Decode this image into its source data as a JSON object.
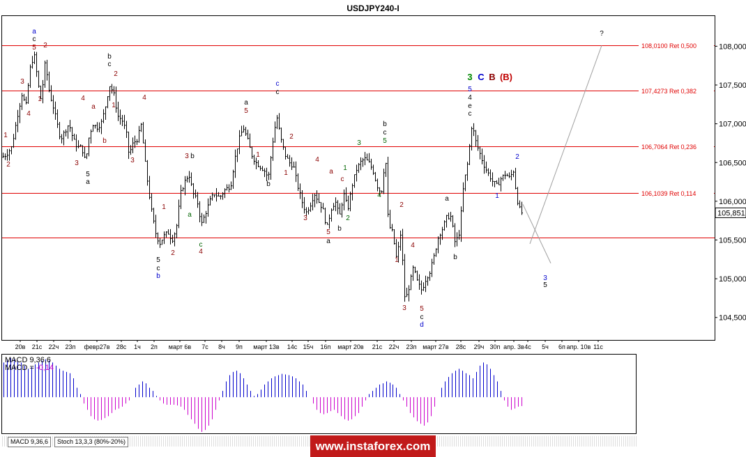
{
  "chart_data": [
    {
      "type": "candlestick",
      "title": "USDJPY240-I",
      "symbol": "USDJPY240-I",
      "ylim": [
        104.21,
        108.39
      ],
      "yticks": [
        "104,500",
        "105,000",
        "105,500",
        "106,000",
        "106,500",
        "107,000",
        "107,500",
        "108,000"
      ],
      "current_price": "105,851",
      "xticks": [
        "20в",
        "21с",
        "22ч",
        "23п",
        "февр27в",
        "28с",
        "1ч",
        "2п",
        "март 6в",
        "7с",
        "8ч",
        "9п",
        "март 13в",
        "14с",
        "15ч",
        "16п",
        "март 20в",
        "21с",
        "22ч",
        "23п",
        "март 27в",
        "28с",
        "29ч",
        "30п",
        "апр. 3в",
        "4с",
        "5ч",
        "6п",
        "апр. 10в",
        "11с"
      ],
      "levels": [
        {
          "price": 108.01,
          "label": "108,0100 Ret 0,500"
        },
        {
          "price": 107.4273,
          "label": "107,4273 Ret 0,382"
        },
        {
          "price": 106.7064,
          "label": "106,7064 Ret 0,236"
        },
        {
          "price": 106.1039,
          "label": "106,1039 Ret 0,114"
        },
        {
          "price": 105.53,
          "label": ""
        }
      ],
      "path": [
        [
          0,
          106.55
        ],
        [
          10,
          106.6
        ],
        [
          18,
          106.7
        ],
        [
          26,
          107.1
        ],
        [
          33,
          107.4
        ],
        [
          38,
          107.2
        ],
        [
          44,
          107.7
        ],
        [
          50,
          107.9
        ],
        [
          56,
          107.5
        ],
        [
          60,
          107.3
        ],
        [
          66,
          107.8
        ],
        [
          72,
          107.4
        ],
        [
          78,
          107.2
        ],
        [
          83,
          107.0
        ],
        [
          88,
          106.8
        ],
        [
          94,
          106.9
        ],
        [
          100,
          107.0
        ],
        [
          106,
          106.8
        ],
        [
          112,
          106.7
        ],
        [
          118,
          106.7
        ],
        [
          124,
          106.5
        ],
        [
          128,
          106.8
        ],
        [
          134,
          107.0
        ],
        [
          140,
          106.95
        ],
        [
          146,
          107.0
        ],
        [
          152,
          107.2
        ],
        [
          158,
          107.5
        ],
        [
          164,
          107.4
        ],
        [
          170,
          107.1
        ],
        [
          176,
          107.05
        ],
        [
          182,
          106.9
        ],
        [
          186,
          106.6
        ],
        [
          192,
          106.75
        ],
        [
          198,
          106.8
        ],
        [
          204,
          107.0
        ],
        [
          208,
          106.6
        ],
        [
          212,
          106.3
        ],
        [
          218,
          105.9
        ],
        [
          224,
          105.6
        ],
        [
          230,
          105.45
        ],
        [
          236,
          105.55
        ],
        [
          242,
          105.6
        ],
        [
          248,
          105.5
        ],
        [
          254,
          105.65
        ],
        [
          260,
          106.1
        ],
        [
          266,
          106.25
        ],
        [
          272,
          106.35
        ],
        [
          278,
          106.1
        ],
        [
          284,
          106.0
        ],
        [
          290,
          105.7
        ],
        [
          296,
          105.85
        ],
        [
          302,
          106.0
        ],
        [
          308,
          106.1
        ],
        [
          316,
          106.05
        ],
        [
          324,
          106.15
        ],
        [
          332,
          106.2
        ],
        [
          338,
          106.55
        ],
        [
          344,
          106.8
        ],
        [
          350,
          106.95
        ],
        [
          356,
          106.8
        ],
        [
          362,
          106.6
        ],
        [
          368,
          106.5
        ],
        [
          374,
          106.45
        ],
        [
          380,
          106.4
        ],
        [
          386,
          106.3
        ],
        [
          392,
          106.75
        ],
        [
          398,
          107.1
        ],
        [
          404,
          106.8
        ],
        [
          410,
          106.6
        ],
        [
          416,
          106.5
        ],
        [
          422,
          106.45
        ],
        [
          428,
          106.2
        ],
        [
          434,
          106.0
        ],
        [
          440,
          105.85
        ],
        [
          446,
          105.95
        ],
        [
          452,
          106.1
        ],
        [
          458,
          106.0
        ],
        [
          464,
          105.9
        ],
        [
          470,
          105.65
        ],
        [
          476,
          105.9
        ],
        [
          482,
          106.0
        ],
        [
          488,
          105.8
        ],
        [
          494,
          106.1
        ],
        [
          500,
          105.9
        ],
        [
          506,
          106.2
        ],
        [
          512,
          106.4
        ],
        [
          518,
          106.5
        ],
        [
          524,
          106.55
        ],
        [
          530,
          106.5
        ],
        [
          536,
          106.4
        ],
        [
          542,
          106.2
        ],
        [
          548,
          106.1
        ],
        [
          554,
          106.6
        ],
        [
          558,
          105.7
        ],
        [
          564,
          105.6
        ],
        [
          570,
          105.25
        ],
        [
          576,
          105.6
        ],
        [
          582,
          104.7
        ],
        [
          588,
          104.9
        ],
        [
          594,
          105.15
        ],
        [
          600,
          104.95
        ],
        [
          606,
          104.85
        ],
        [
          612,
          105.0
        ],
        [
          618,
          105.1
        ],
        [
          624,
          105.3
        ],
        [
          630,
          105.55
        ],
        [
          636,
          105.65
        ],
        [
          642,
          105.8
        ],
        [
          648,
          105.8
        ],
        [
          654,
          105.45
        ],
        [
          660,
          105.6
        ],
        [
          666,
          106.2
        ],
        [
          672,
          106.5
        ],
        [
          678,
          107.0
        ],
        [
          684,
          106.75
        ],
        [
          690,
          106.6
        ],
        [
          696,
          106.45
        ],
        [
          702,
          106.35
        ],
        [
          708,
          106.25
        ],
        [
          714,
          106.2
        ],
        [
          720,
          106.3
        ],
        [
          726,
          106.35
        ],
        [
          732,
          106.3
        ],
        [
          738,
          106.4
        ],
        [
          742,
          106.05
        ],
        [
          748,
          105.85
        ]
      ],
      "wave_labels": [
        {
          "t": "a",
          "x": 49,
          "y": 48,
          "color": "#0000cc"
        },
        {
          "t": "c",
          "x": 49,
          "y": 59,
          "color": "#000000"
        },
        {
          "t": "5",
          "x": 49,
          "y": 71,
          "color": "#8b0000"
        },
        {
          "t": "2",
          "x": 65,
          "y": 68,
          "color": "#8b0000"
        },
        {
          "t": "3",
          "x": 32,
          "y": 120,
          "color": "#8b0000"
        },
        {
          "t": "4",
          "x": 41,
          "y": 166,
          "color": "#8b0000"
        },
        {
          "t": "1",
          "x": 57,
          "y": 145,
          "color": "#8b0000"
        },
        {
          "t": "1",
          "x": 8,
          "y": 197,
          "color": "#8b0000"
        },
        {
          "t": "2",
          "x": 12,
          "y": 239,
          "color": "#8b0000"
        },
        {
          "t": "4",
          "x": 119,
          "y": 144,
          "color": "#8b0000"
        },
        {
          "t": "3",
          "x": 110,
          "y": 237,
          "color": "#8b0000"
        },
        {
          "t": "5",
          "x": 126,
          "y": 253,
          "color": "#000000"
        },
        {
          "t": "a",
          "x": 126,
          "y": 264,
          "color": "#000000"
        },
        {
          "t": "a",
          "x": 134,
          "y": 156,
          "color": "#8b0000"
        },
        {
          "t": "b",
          "x": 150,
          "y": 205,
          "color": "#8b0000"
        },
        {
          "t": "b",
          "x": 157,
          "y": 84,
          "color": "#000000"
        },
        {
          "t": "c",
          "x": 157,
          "y": 95,
          "color": "#000000"
        },
        {
          "t": "2",
          "x": 166,
          "y": 109,
          "color": "#8b0000"
        },
        {
          "t": "1",
          "x": 163,
          "y": 154,
          "color": "#8b0000"
        },
        {
          "t": "4",
          "x": 207,
          "y": 143,
          "color": "#8b0000"
        },
        {
          "t": "3",
          "x": 190,
          "y": 233,
          "color": "#8b0000"
        },
        {
          "t": "1",
          "x": 235,
          "y": 300,
          "color": "#8b0000"
        },
        {
          "t": "5",
          "x": 227,
          "y": 376,
          "color": "#000000"
        },
        {
          "t": "c",
          "x": 227,
          "y": 388,
          "color": "#000000"
        },
        {
          "t": "b",
          "x": 227,
          "y": 399,
          "color": "#0000cc"
        },
        {
          "t": "2",
          "x": 248,
          "y": 366,
          "color": "#8b0000"
        },
        {
          "t": "3",
          "x": 268,
          "y": 227,
          "color": "#8b0000"
        },
        {
          "t": "b",
          "x": 276,
          "y": 227,
          "color": "#000000"
        },
        {
          "t": "a",
          "x": 272,
          "y": 311,
          "color": "#006400"
        },
        {
          "t": "c",
          "x": 288,
          "y": 354,
          "color": "#006400"
        },
        {
          "t": "4",
          "x": 288,
          "y": 364,
          "color": "#8b0000"
        },
        {
          "t": "a",
          "x": 353,
          "y": 150,
          "color": "#000000"
        },
        {
          "t": "5",
          "x": 353,
          "y": 162,
          "color": "#8b0000"
        },
        {
          "t": "1",
          "x": 370,
          "y": 225,
          "color": "#8b0000"
        },
        {
          "t": "b",
          "x": 385,
          "y": 267,
          "color": "#000000"
        },
        {
          "t": "c",
          "x": 398,
          "y": 123,
          "color": "#0000cc"
        },
        {
          "t": "c",
          "x": 398,
          "y": 135,
          "color": "#000000"
        },
        {
          "t": "2",
          "x": 418,
          "y": 199,
          "color": "#8b0000"
        },
        {
          "t": "1",
          "x": 410,
          "y": 251,
          "color": "#8b0000"
        },
        {
          "t": "4",
          "x": 455,
          "y": 232,
          "color": "#8b0000"
        },
        {
          "t": "3",
          "x": 438,
          "y": 316,
          "color": "#8b0000"
        },
        {
          "t": "5",
          "x": 471,
          "y": 336,
          "color": "#8b0000"
        },
        {
          "t": "a",
          "x": 471,
          "y": 349,
          "color": "#000000"
        },
        {
          "t": "a",
          "x": 475,
          "y": 249,
          "color": "#8b0000"
        },
        {
          "t": "b",
          "x": 487,
          "y": 331,
          "color": "#000000"
        },
        {
          "t": "c",
          "x": 491,
          "y": 260,
          "color": "#8b0000"
        },
        {
          "t": "1",
          "x": 495,
          "y": 244,
          "color": "#006400"
        },
        {
          "t": "2",
          "x": 499,
          "y": 316,
          "color": "#006400"
        },
        {
          "t": "3",
          "x": 515,
          "y": 208,
          "color": "#006400"
        },
        {
          "t": "4",
          "x": 544,
          "y": 283,
          "color": "#006400"
        },
        {
          "t": "b",
          "x": 552,
          "y": 181,
          "color": "#000000"
        },
        {
          "t": "c",
          "x": 552,
          "y": 193,
          "color": "#000000"
        },
        {
          "t": "5",
          "x": 552,
          "y": 205,
          "color": "#006400"
        },
        {
          "t": "2",
          "x": 576,
          "y": 297,
          "color": "#8b0000"
        },
        {
          "t": "1",
          "x": 569,
          "y": 376,
          "color": "#8b0000"
        },
        {
          "t": "4",
          "x": 592,
          "y": 355,
          "color": "#8b0000"
        },
        {
          "t": "3",
          "x": 580,
          "y": 445,
          "color": "#8b0000"
        },
        {
          "t": "5",
          "x": 605,
          "y": 446,
          "color": "#8b0000"
        },
        {
          "t": "c",
          "x": 605,
          "y": 458,
          "color": "#000000"
        },
        {
          "t": "d",
          "x": 605,
          "y": 469,
          "color": "#0000cc"
        },
        {
          "t": "a",
          "x": 641,
          "y": 288,
          "color": "#000000"
        },
        {
          "t": "b",
          "x": 653,
          "y": 372,
          "color": "#000000"
        },
        {
          "t": "5",
          "x": 674,
          "y": 131,
          "color": "#0000cc",
          "size": 13
        },
        {
          "t": "4",
          "x": 674,
          "y": 143,
          "color": "#000000",
          "bold": true,
          "size": 12
        },
        {
          "t": "e",
          "x": 674,
          "y": 155,
          "color": "#000000"
        },
        {
          "t": "c",
          "x": 674,
          "y": 166,
          "color": "#000000"
        },
        {
          "t": "1",
          "x": 713,
          "y": 284,
          "color": "#0000cc"
        },
        {
          "t": "2",
          "x": 742,
          "y": 228,
          "color": "#0000cc"
        },
        {
          "t": "3",
          "x": 782,
          "y": 402,
          "color": "#0000cc",
          "size": 12
        },
        {
          "t": "5",
          "x": 782,
          "y": 412,
          "color": "#000000",
          "bold": true,
          "size": 12
        },
        {
          "t": "?",
          "x": 863,
          "y": 51,
          "color": "#000000",
          "bold": true,
          "size": 12
        }
      ],
      "header_labels": [
        {
          "t": "3",
          "x": 674,
          "y": 115,
          "color": "#008800"
        },
        {
          "t": "C",
          "x": 690,
          "y": 115,
          "color": "#0000cc"
        },
        {
          "t": "B",
          "x": 706,
          "y": 115,
          "color": "#8b0000"
        },
        {
          "t": "(B)",
          "x": 726,
          "y": 115,
          "color": "#c00000"
        }
      ],
      "projection": [
        [
          750,
          105.96
        ],
        [
          790,
          105.2
        ]
      ],
      "projection2": [
        [
          760,
          105.45
        ],
        [
          863,
          108.01
        ]
      ]
    },
    {
      "type": "bar",
      "title": "MACD 9,36,6",
      "series": [
        {
          "name": "MACD",
          "color": "#0000cc",
          "neg_color": "#cc00cc"
        }
      ],
      "current_label": "MACD = ",
      "current_value": "-0,14",
      "values": [
        0.55,
        0.6,
        0.62,
        0.6,
        0.58,
        0.55,
        0.5,
        0.45,
        0.48,
        0.52,
        0.55,
        0.58,
        0.6,
        0.58,
        0.55,
        0.5,
        0.45,
        0.42,
        0.4,
        0.38,
        0.3,
        0.15,
        0.05,
        -0.1,
        -0.2,
        -0.3,
        -0.35,
        -0.37,
        -0.36,
        -0.33,
        -0.3,
        -0.25,
        -0.2,
        -0.18,
        -0.15,
        -0.1,
        -0.05,
        0.0,
        0.15,
        0.2,
        0.25,
        0.22,
        0.15,
        0.1,
        0.02,
        -0.05,
        -0.1,
        -0.12,
        -0.12,
        -0.12,
        -0.13,
        -0.15,
        -0.2,
        -0.28,
        -0.35,
        -0.42,
        -0.5,
        -0.55,
        -0.52,
        -0.45,
        -0.35,
        -0.2,
        -0.05,
        0.1,
        0.25,
        0.35,
        0.4,
        0.42,
        0.38,
        0.3,
        0.2,
        0.1,
        0.02,
        0.05,
        0.12,
        0.2,
        0.25,
        0.3,
        0.33,
        0.35,
        0.37,
        0.36,
        0.35,
        0.33,
        0.3,
        0.25,
        0.2,
        0.1,
        0.0,
        -0.1,
        -0.2,
        -0.25,
        -0.27,
        -0.25,
        -0.22,
        -0.2,
        -0.25,
        -0.3,
        -0.35,
        -0.37,
        -0.35,
        -0.3,
        -0.25,
        -0.15,
        -0.05,
        0.05,
        0.1,
        0.15,
        0.2,
        0.22,
        0.25,
        0.23,
        0.2,
        0.15,
        0.05,
        -0.05,
        -0.15,
        -0.25,
        -0.32,
        -0.38,
        -0.42,
        -0.45,
        -0.4,
        -0.3,
        -0.15,
        0.0,
        0.15,
        0.25,
        0.32,
        0.38,
        0.42,
        0.45,
        0.42,
        0.38,
        0.35,
        0.3,
        0.4,
        0.5,
        0.55,
        0.52,
        0.45,
        0.35,
        0.25,
        0.1,
        -0.05,
        -0.15,
        -0.2,
        -0.18,
        -0.15,
        -0.14
      ],
      "ylim": [
        -0.55,
        0.62
      ]
    }
  ],
  "tabs": [
    "MACD 9,36,6",
    "Stoch 13,3,3 (80%-20%)"
  ],
  "watermark": "www.instaforex.com",
  "colors": {
    "level_line": "#e00000",
    "candle": "#000000",
    "macd_pos": "#0000cc",
    "macd_neg": "#cc00cc",
    "projection": "#a0a0a0"
  }
}
